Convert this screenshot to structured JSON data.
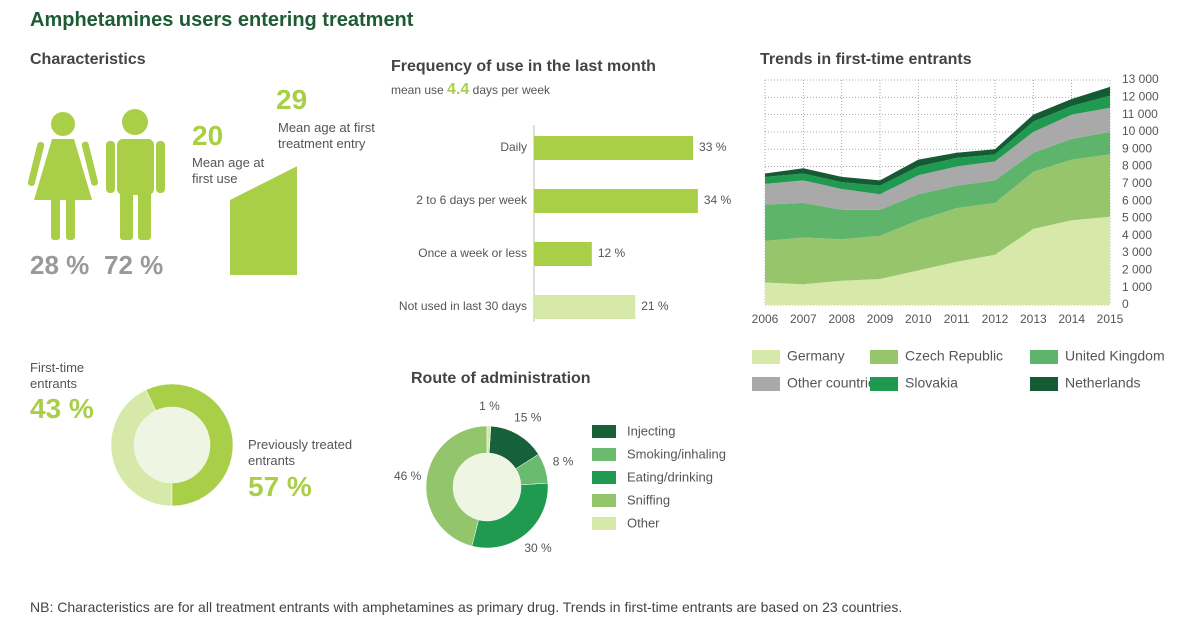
{
  "title": "Amphetamines users entering treatment",
  "note": "NB: Characteristics are for all treatment entrants with amphetamines as primary drug. Trends in first-time entrants are based on 23 countries.",
  "characteristics": {
    "title": "Characteristics",
    "gender": {
      "values": [
        28,
        72
      ],
      "value_labels": [
        "28 %",
        "72 %"
      ]
    },
    "age": {
      "first_use": {
        "value": 20,
        "label": "Mean age at first use"
      },
      "first_treatment": {
        "value": 29,
        "label": "Mean age at first treatment entry"
      }
    }
  },
  "chart_data": [
    {
      "type": "bar",
      "title": "Frequency of use in the last month",
      "subtitle_before": "mean use",
      "mean_use": 4.4,
      "subtitle_after": "days per week",
      "categories": [
        "Daily",
        "2 to 6 days per week",
        "Once a week or less",
        "Not used in last 30 days"
      ],
      "values": [
        33,
        34,
        12,
        21
      ],
      "value_labels": [
        "33 %",
        "34 %",
        "12 %",
        "21 %"
      ],
      "colors": [
        "#a9cf48",
        "#a9cf48",
        "#a9cf48",
        "#d6e9a8"
      ]
    },
    {
      "type": "donut",
      "categories": [
        "First-time entrants",
        "Previously treated entrants"
      ],
      "values": [
        43,
        57
      ],
      "value_labels": [
        "43 %",
        "57 %"
      ],
      "colors": [
        "#d6e9a8",
        "#a9cf48"
      ]
    },
    {
      "type": "donut",
      "title": "Route of administration",
      "categories": [
        "Injecting",
        "Smoking/inhaling",
        "Eating/drinking",
        "Sniffing",
        "Other"
      ],
      "values": [
        15,
        8,
        30,
        46,
        1
      ],
      "value_labels": [
        "15 %",
        "8 %",
        "30 %",
        "46 %",
        "1 %"
      ],
      "colors": [
        "#17613a",
        "#6abb6e",
        "#1f9a50",
        "#93c66c",
        "#d6e9a8"
      ]
    },
    {
      "type": "area",
      "title": "Trends in first-time entrants",
      "x": [
        2006,
        2007,
        2008,
        2009,
        2010,
        2011,
        2012,
        2013,
        2014,
        2015
      ],
      "xlim": [
        2006,
        2015
      ],
      "xticks": [
        2006,
        2007,
        2008,
        2009,
        2010,
        2011,
        2012,
        2013,
        2014,
        2015
      ],
      "ylim": [
        0,
        13000
      ],
      "yticks": [
        0,
        {
          "value": 1000,
          "label": "1 000"
        },
        {
          "value": 2000,
          "label": "2 000"
        },
        {
          "value": 3000,
          "label": "3 000"
        },
        {
          "value": 4000,
          "label": "4 000"
        },
        {
          "value": 5000,
          "label": "5 000"
        },
        {
          "value": 6000,
          "label": "6 000"
        },
        {
          "value": 7000,
          "label": "7 000"
        },
        {
          "value": 8000,
          "label": "8 000"
        },
        {
          "value": 9000,
          "label": "9 000"
        },
        {
          "value": 10000,
          "label": "10 000"
        },
        {
          "value": 11000,
          "label": "11 000"
        },
        {
          "value": 12000,
          "label": "12 000"
        },
        {
          "value": 13000,
          "label": "13 000"
        }
      ],
      "grid": true,
      "series": [
        {
          "name": "Germany",
          "color": "#d6e9a8",
          "values": [
            1300,
            1200,
            1400,
            1500,
            2000,
            2500,
            2900,
            4400,
            4900,
            5100
          ]
        },
        {
          "name": "Czech Republic",
          "color": "#97c56b",
          "values": [
            2400,
            2700,
            2400,
            2500,
            2900,
            3100,
            3000,
            3300,
            3500,
            3600
          ]
        },
        {
          "name": "United Kingdom",
          "color": "#5fb46b",
          "values": [
            2100,
            2000,
            1700,
            1500,
            1500,
            1300,
            1300,
            1100,
            1200,
            1300
          ]
        },
        {
          "name": "Other countries",
          "color": "#a9a9a9",
          "values": [
            1200,
            1300,
            1200,
            900,
            1100,
            1100,
            1100,
            1200,
            1400,
            1400
          ]
        },
        {
          "name": "Slovakia",
          "color": "#1f9a50",
          "values": [
            400,
            400,
            400,
            500,
            500,
            500,
            400,
            600,
            500,
            700
          ]
        },
        {
          "name": "Netherlands",
          "color": "#145a32",
          "values": [
            200,
            300,
            300,
            300,
            400,
            300,
            300,
            400,
            400,
            500
          ]
        }
      ]
    }
  ]
}
